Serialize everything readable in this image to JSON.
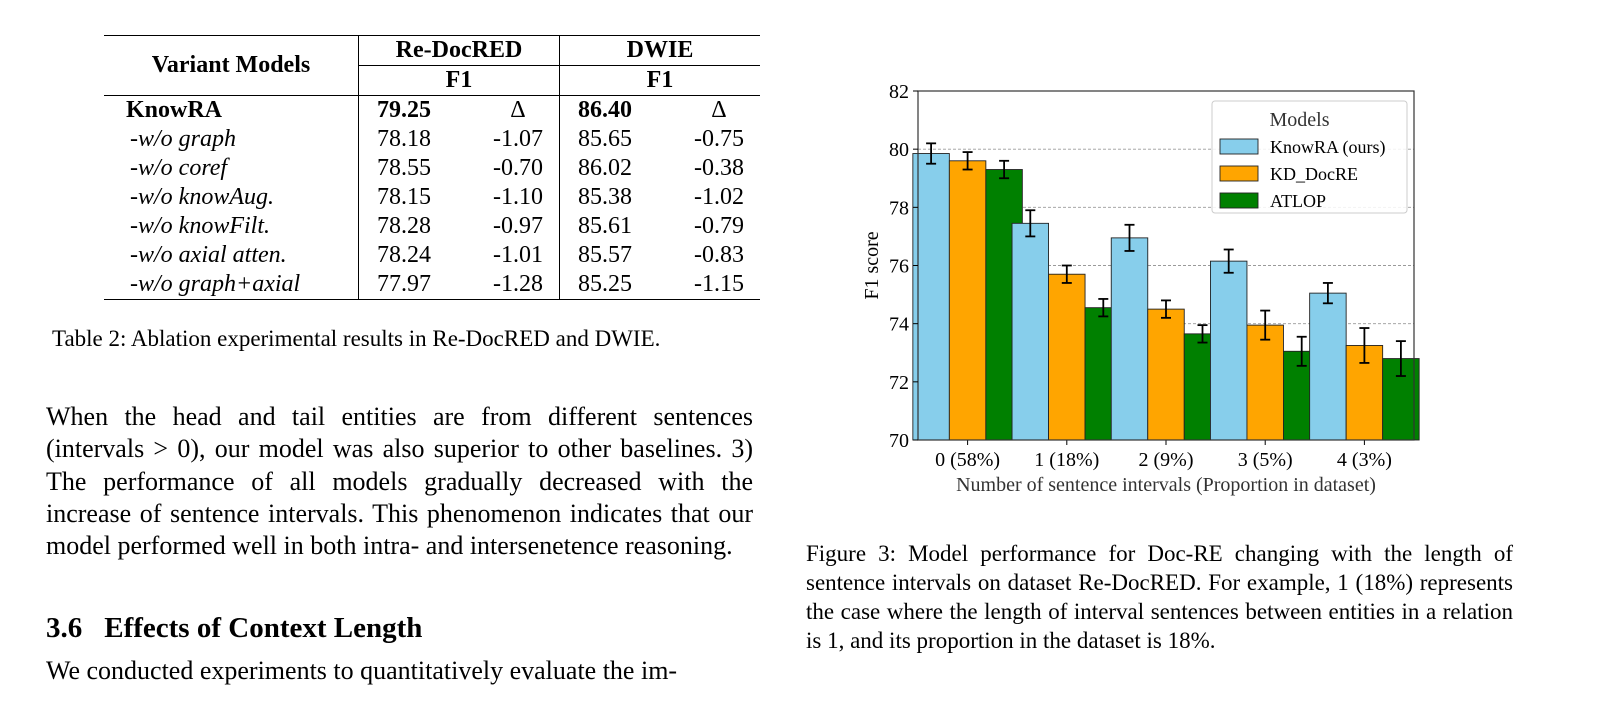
{
  "table": {
    "header": {
      "variant": "Variant Models",
      "dataset1": "Re-DocRED",
      "dataset2": "DWIE",
      "metric1": "F1",
      "metric2": "F1"
    },
    "rows": [
      {
        "name": "KnowRA",
        "rd_f1": "79.25",
        "rd_delta": "Δ",
        "dw_f1": "86.40",
        "dw_delta": "Δ"
      },
      {
        "name": "-w/o graph",
        "rd_f1": "78.18",
        "rd_delta": "-1.07",
        "dw_f1": "85.65",
        "dw_delta": "-0.75"
      },
      {
        "name": "-w/o coref",
        "rd_f1": "78.55",
        "rd_delta": "-0.70",
        "dw_f1": "86.02",
        "dw_delta": "-0.38"
      },
      {
        "name": "-w/o knowAug.",
        "rd_f1": "78.15",
        "rd_delta": "-1.10",
        "dw_f1": "85.38",
        "dw_delta": "-1.02"
      },
      {
        "name": "-w/o knowFilt.",
        "rd_f1": "78.28",
        "rd_delta": "-0.97",
        "dw_f1": "85.61",
        "dw_delta": "-0.79"
      },
      {
        "name": "-w/o axial atten.",
        "rd_f1": "78.24",
        "rd_delta": "-1.01",
        "dw_f1": "85.57",
        "dw_delta": "-0.83"
      },
      {
        "name": "-w/o graph+axial",
        "rd_f1": "77.97",
        "rd_delta": "-1.28",
        "dw_f1": "85.25",
        "dw_delta": "-1.15"
      }
    ],
    "caption": "Table 2: Ablation experimental results in Re-DocRED and DWIE."
  },
  "body": {
    "paragraph": "When the head and tail entities are from different sentences (intervals > 0), our model was also superior to other baselines. 3) The performance of all models gradually decreased with the increase of sentence intervals. This phenomenon indicates that our model performed well in both intra- and intersenetence reasoning.",
    "section_number": "3.6",
    "section_title": "Effects of Context Length",
    "last_line": "We conducted experiments to quantitatively evaluate the im-"
  },
  "figure": {
    "caption": "Figure 3: Model performance for Doc-RE changing with the length of sentence intervals on dataset Re-DocRED. For example, 1 (18%) represents the case where the length of interval sentences between entities in a relation is 1, and its proportion in the dataset is 18%."
  },
  "chart_data": {
    "type": "bar",
    "title": "",
    "xlabel": "Number of sentence intervals (Proportion in dataset)",
    "ylabel": "F1 score",
    "ylim": [
      70,
      82
    ],
    "yticks": [
      70,
      72,
      74,
      76,
      78,
      80,
      82
    ],
    "grid": "horizontal dashed",
    "legend_title": "Models",
    "legend_position": "top-right",
    "categories": [
      "0 (58%)",
      "1 (18%)",
      "2 (9%)",
      "3 (5%)",
      "4 (3%)"
    ],
    "series": [
      {
        "name": "KnowRA (ours)",
        "color": "#87ceeb",
        "values": [
          79.85,
          77.45,
          76.95,
          76.15,
          75.05
        ],
        "errors": [
          0.35,
          0.45,
          0.45,
          0.4,
          0.35
        ]
      },
      {
        "name": "KD_DocRE",
        "color": "#ffa500",
        "values": [
          79.6,
          75.7,
          74.5,
          73.95,
          73.25
        ],
        "errors": [
          0.3,
          0.3,
          0.3,
          0.5,
          0.6
        ]
      },
      {
        "name": "ATLOP",
        "color": "#008000",
        "values": [
          79.3,
          74.55,
          73.65,
          73.05,
          72.8
        ],
        "errors": [
          0.3,
          0.3,
          0.3,
          0.5,
          0.6
        ]
      }
    ]
  }
}
